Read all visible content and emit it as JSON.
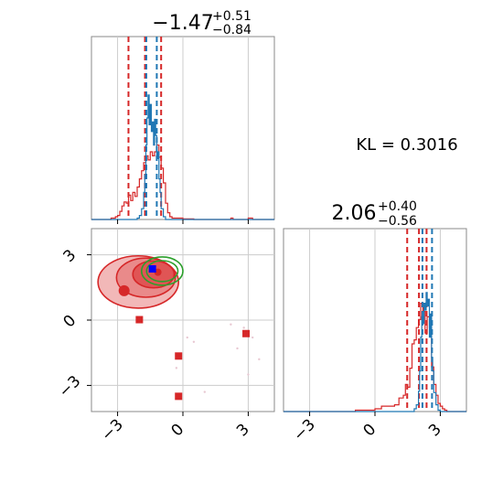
{
  "chart_data": {
    "type": "corner",
    "parameters": [
      {
        "title": {
          "main": "−1.47",
          "sup": "+0.51",
          "sub": "−0.84"
        },
        "median": -1.47,
        "interval": [
          -2.31,
          -0.96
        ]
      },
      {
        "title": {
          "main": "2.06",
          "sup": "+0.40",
          "sub": "−0.56"
        },
        "median": 2.06,
        "interval": [
          1.5,
          2.46
        ]
      }
    ],
    "kl_label": "KL = 0.3016",
    "tick_values": [
      -3,
      0,
      3
    ],
    "tick_labels": [
      "−3",
      "0",
      "3"
    ],
    "axis_range": [
      -4.2,
      4.2
    ],
    "grid": true,
    "colors": {
      "red": "#d62728",
      "blue": "#1f77b4",
      "green": "#2ca02c",
      "grid": "#cccccc"
    },
    "series": [
      {
        "name": "",
        "color": "#d62728",
        "quantile_lines": [
          -2.5,
          -1.74,
          -1.0
        ],
        "quantile_lines_p2": [
          1.48,
          2.02,
          2.37
        ],
        "hist_p1": [
          [
            -4.2,
            0
          ],
          [
            -3.4,
            0
          ],
          [
            -3.3,
            0.01
          ],
          [
            -3.1,
            0.02
          ],
          [
            -3.0,
            0.03
          ],
          [
            -2.9,
            0.06
          ],
          [
            -2.8,
            0.1
          ],
          [
            -2.7,
            0.13
          ],
          [
            -2.6,
            0.12
          ],
          [
            -2.5,
            0.18
          ],
          [
            -2.4,
            0.14
          ],
          [
            -2.3,
            0.2
          ],
          [
            -2.2,
            0.17
          ],
          [
            -2.1,
            0.24
          ],
          [
            -2.0,
            0.3
          ],
          [
            -1.9,
            0.36
          ],
          [
            -1.8,
            0.42
          ],
          [
            -1.7,
            0.47
          ],
          [
            -1.6,
            0.44
          ],
          [
            -1.5,
            0.5
          ],
          [
            -1.4,
            0.47
          ],
          [
            -1.3,
            0.5
          ],
          [
            -1.2,
            0.55
          ],
          [
            -1.1,
            0.46
          ],
          [
            -1.0,
            0.38
          ],
          [
            -0.9,
            0.27
          ],
          [
            -0.8,
            0.12
          ],
          [
            -0.7,
            0.05
          ],
          [
            -0.6,
            0.02
          ],
          [
            -0.5,
            0.01
          ],
          [
            0.0,
            0.005
          ],
          [
            0.5,
            0
          ],
          [
            2.2,
            0.01
          ],
          [
            2.3,
            0
          ],
          [
            3.0,
            0.01
          ],
          [
            3.2,
            0
          ],
          [
            4.2,
            0
          ]
        ],
        "hist_p2": [
          [
            -4.2,
            0
          ],
          [
            -1.0,
            0
          ],
          [
            -0.9,
            0.01
          ],
          [
            -0.5,
            0.01
          ],
          [
            0.0,
            0.02
          ],
          [
            0.3,
            0.04
          ],
          [
            0.6,
            0.04
          ],
          [
            0.9,
            0.05
          ],
          [
            1.1,
            0.1
          ],
          [
            1.3,
            0.12
          ],
          [
            1.4,
            0.2
          ],
          [
            1.5,
            0.18
          ],
          [
            1.6,
            0.32
          ],
          [
            1.7,
            0.5
          ],
          [
            1.8,
            0.53
          ],
          [
            1.9,
            0.62
          ],
          [
            2.0,
            0.68
          ],
          [
            2.1,
            0.8
          ],
          [
            2.2,
            0.74
          ],
          [
            2.3,
            0.58
          ],
          [
            2.4,
            0.7
          ],
          [
            2.5,
            0.62
          ],
          [
            2.6,
            0.33
          ],
          [
            2.7,
            0.2
          ],
          [
            2.8,
            0.12
          ],
          [
            2.9,
            0.06
          ],
          [
            3.0,
            0.04
          ],
          [
            3.1,
            0.02
          ],
          [
            3.2,
            0.01
          ],
          [
            3.3,
            0
          ],
          [
            4.2,
            0
          ]
        ],
        "centroids": [
          {
            "x": -2.7,
            "y": 1.35,
            "marker": "circle"
          },
          {
            "x": -2.0,
            "y": 0.02,
            "marker": "square"
          },
          {
            "x": -0.2,
            "y": -1.65,
            "marker": "square"
          },
          {
            "x": -0.2,
            "y": -3.5,
            "marker": "square"
          },
          {
            "x": 2.9,
            "y": -0.62,
            "marker": "square"
          },
          {
            "x": -1.15,
            "y": 2.2,
            "marker": "circle"
          }
        ],
        "contours": [
          {
            "cx": -2.05,
            "cy": 1.75,
            "rx": 1.85,
            "ry": 1.2,
            "fill": "#f2b8b8",
            "opacity": 1.0
          },
          {
            "cx": -1.7,
            "cy": 1.95,
            "rx": 1.35,
            "ry": 0.9,
            "fill": "#e98a8a",
            "opacity": 1.0
          },
          {
            "cx": -1.35,
            "cy": 2.1,
            "rx": 0.95,
            "ry": 0.62,
            "fill": "#e05555",
            "opacity": 1.0
          }
        ]
      },
      {
        "name": "",
        "color": "#1f77b4",
        "quantile_lines": [
          -1.68,
          -1.2
        ],
        "quantile_lines_p2": [
          2.18,
          2.62
        ],
        "hist_p1": [
          [
            -4.2,
            0
          ],
          [
            -2.2,
            0
          ],
          [
            -2.1,
            0.01
          ],
          [
            -2.0,
            0.03
          ],
          [
            -1.9,
            0.08
          ],
          [
            -1.8,
            0.2
          ],
          [
            -1.75,
            0.33
          ],
          [
            -1.7,
            0.55
          ],
          [
            -1.65,
            0.75
          ],
          [
            -1.6,
            0.92
          ],
          [
            -1.55,
            0.7
          ],
          [
            -1.5,
            0.85
          ],
          [
            -1.45,
            0.65
          ],
          [
            -1.4,
            0.72
          ],
          [
            -1.35,
            0.55
          ],
          [
            -1.3,
            0.74
          ],
          [
            -1.25,
            0.62
          ],
          [
            -1.2,
            0.45
          ],
          [
            -1.15,
            0.5
          ],
          [
            -1.1,
            0.3
          ],
          [
            -1.05,
            0.2
          ],
          [
            -1.0,
            0.08
          ],
          [
            -0.9,
            0.02
          ],
          [
            -0.8,
            0
          ],
          [
            4.2,
            0
          ]
        ],
        "hist_p2": [
          [
            -4.2,
            0
          ],
          [
            1.7,
            0
          ],
          [
            1.8,
            0.02
          ],
          [
            1.9,
            0.05
          ],
          [
            2.0,
            0.15
          ],
          [
            2.05,
            0.3
          ],
          [
            2.1,
            0.55
          ],
          [
            2.15,
            0.7
          ],
          [
            2.2,
            0.65
          ],
          [
            2.25,
            0.8
          ],
          [
            2.3,
            0.75
          ],
          [
            2.35,
            0.88
          ],
          [
            2.4,
            0.78
          ],
          [
            2.45,
            0.83
          ],
          [
            2.5,
            0.55
          ],
          [
            2.55,
            0.72
          ],
          [
            2.6,
            0.4
          ],
          [
            2.65,
            0.3
          ],
          [
            2.7,
            0.14
          ],
          [
            2.8,
            0.05
          ],
          [
            2.9,
            0.01
          ],
          [
            3.0,
            0
          ],
          [
            4.2,
            0
          ]
        ]
      },
      {
        "name": "",
        "color": "#2ca02c",
        "contours": [
          {
            "cx": -0.95,
            "cy": 2.25,
            "rx": 0.95,
            "ry": 0.65,
            "fill": "none",
            "opacity": 1.0
          },
          {
            "cx": -0.95,
            "cy": 2.25,
            "rx": 0.72,
            "ry": 0.48,
            "fill": "none",
            "opacity": 1.0
          }
        ]
      }
    ],
    "blue_marker": {
      "x": -1.4,
      "y": 2.35,
      "marker": "square"
    },
    "scatter_faint": [
      [
        -0.3,
        -2.2
      ],
      [
        0.5,
        -1.0
      ],
      [
        1.0,
        -3.3
      ],
      [
        2.2,
        -0.2
      ],
      [
        2.5,
        -1.3
      ],
      [
        3.2,
        -0.8
      ],
      [
        3.5,
        -1.8
      ],
      [
        -3.0,
        1.5
      ],
      [
        2.8,
        -0.35
      ],
      [
        3.0,
        -2.5
      ],
      [
        0.2,
        -0.8
      ],
      [
        -0.6,
        1.0
      ]
    ]
  }
}
